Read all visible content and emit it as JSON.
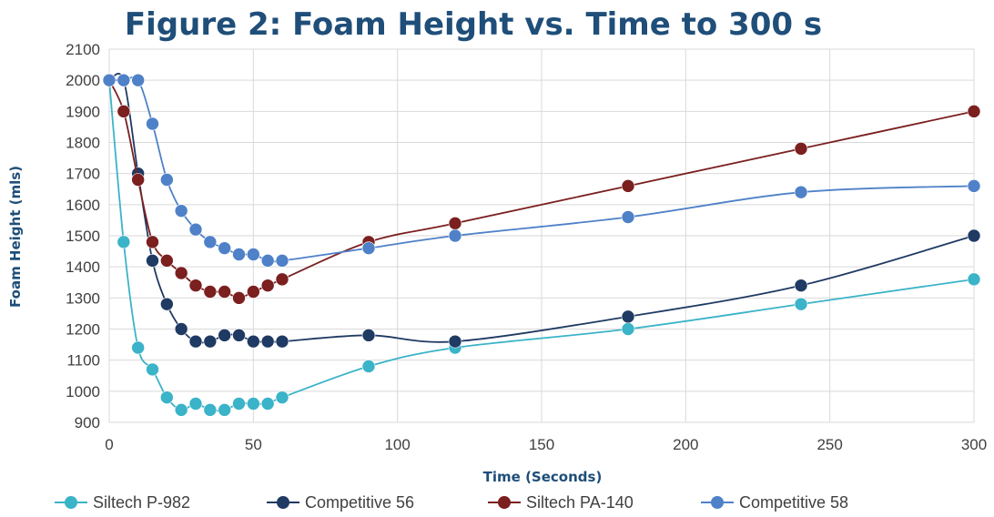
{
  "chart_data": {
    "type": "line",
    "title": "Figure 2: Foam Height vs. Time to 300 s",
    "xlabel": "Time (Seconds)",
    "ylabel": "Foam Height (mls)",
    "xlim": [
      0,
      300
    ],
    "ylim": [
      900,
      2100
    ],
    "xticks": [
      0,
      50,
      100,
      150,
      200,
      250,
      300
    ],
    "yticks": [
      900,
      1000,
      1100,
      1200,
      1300,
      1400,
      1500,
      1600,
      1700,
      1800,
      1900,
      2000,
      2100
    ],
    "grid": true,
    "legend_position": "bottom",
    "x": [
      0,
      5,
      10,
      15,
      20,
      25,
      30,
      35,
      40,
      45,
      50,
      55,
      60,
      90,
      120,
      180,
      240,
      300
    ],
    "series": [
      {
        "name": "Siltech P-982",
        "color": "#3bb3c8",
        "values": [
          2000,
          1480,
          1140,
          1070,
          980,
          940,
          960,
          940,
          940,
          960,
          960,
          960,
          980,
          1080,
          1140,
          1200,
          1280,
          1360
        ]
      },
      {
        "name": "Competitive 56",
        "color": "#1f3a63",
        "values": [
          2000,
          2000,
          1700,
          1420,
          1280,
          1200,
          1160,
          1160,
          1180,
          1180,
          1160,
          1160,
          1160,
          1180,
          1160,
          1240,
          1340,
          1500
        ]
      },
      {
        "name": "Siltech PA-140",
        "color": "#7b1f1f",
        "values": [
          2000,
          1900,
          1680,
          1480,
          1420,
          1380,
          1340,
          1320,
          1320,
          1300,
          1320,
          1340,
          1360,
          1480,
          1540,
          1660,
          1780,
          1900
        ]
      },
      {
        "name": "Competitive 58",
        "color": "#4f81c8",
        "values": [
          2000,
          2000,
          2000,
          1860,
          1680,
          1580,
          1520,
          1480,
          1460,
          1440,
          1440,
          1420,
          1420,
          1460,
          1500,
          1560,
          1640,
          1660
        ]
      }
    ]
  }
}
